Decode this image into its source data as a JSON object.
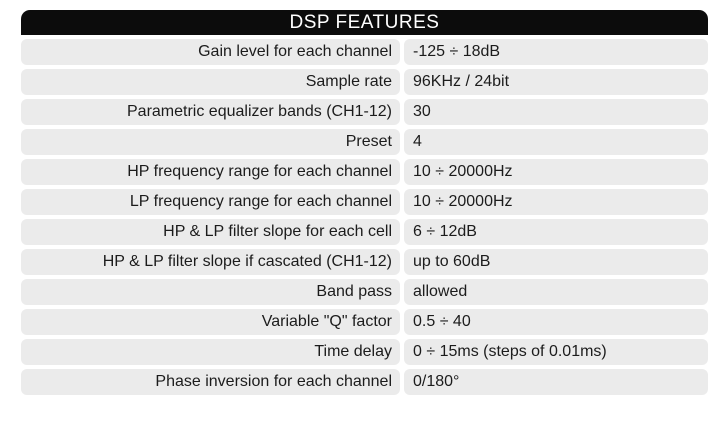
{
  "title": "DSP FEATURES",
  "rows": [
    {
      "label": "Gain level for each channel",
      "value": "-125 ÷ 18dB"
    },
    {
      "label": "Sample rate",
      "value": "96KHz / 24bit"
    },
    {
      "label": "Parametric equalizer bands (CH1-12)",
      "value": "30"
    },
    {
      "label": "Preset",
      "value": "4"
    },
    {
      "label": "HP frequency range for each channel",
      "value": "10 ÷ 20000Hz"
    },
    {
      "label": "LP frequency range for each channel",
      "value": "10 ÷ 20000Hz"
    },
    {
      "label": "HP & LP filter slope for each cell",
      "value": "6 ÷ 12dB"
    },
    {
      "label": "HP & LP filter slope if cascated (CH1-12)",
      "value": "up to 60dB"
    },
    {
      "label": "Band pass",
      "value": "allowed"
    },
    {
      "label": "Variable \"Q\" factor",
      "value": "0.5 ÷ 40"
    },
    {
      "label": "Time delay",
      "value": "0 ÷ 15ms (steps of 0.01ms)"
    },
    {
      "label": "Phase inversion for each channel",
      "value": "0/180°"
    }
  ],
  "colors": {
    "header_background": "#0c0c0c",
    "header_text": "#ffffff",
    "cell_background": "#ebebeb",
    "cell_text": "#1c1c1c"
  }
}
